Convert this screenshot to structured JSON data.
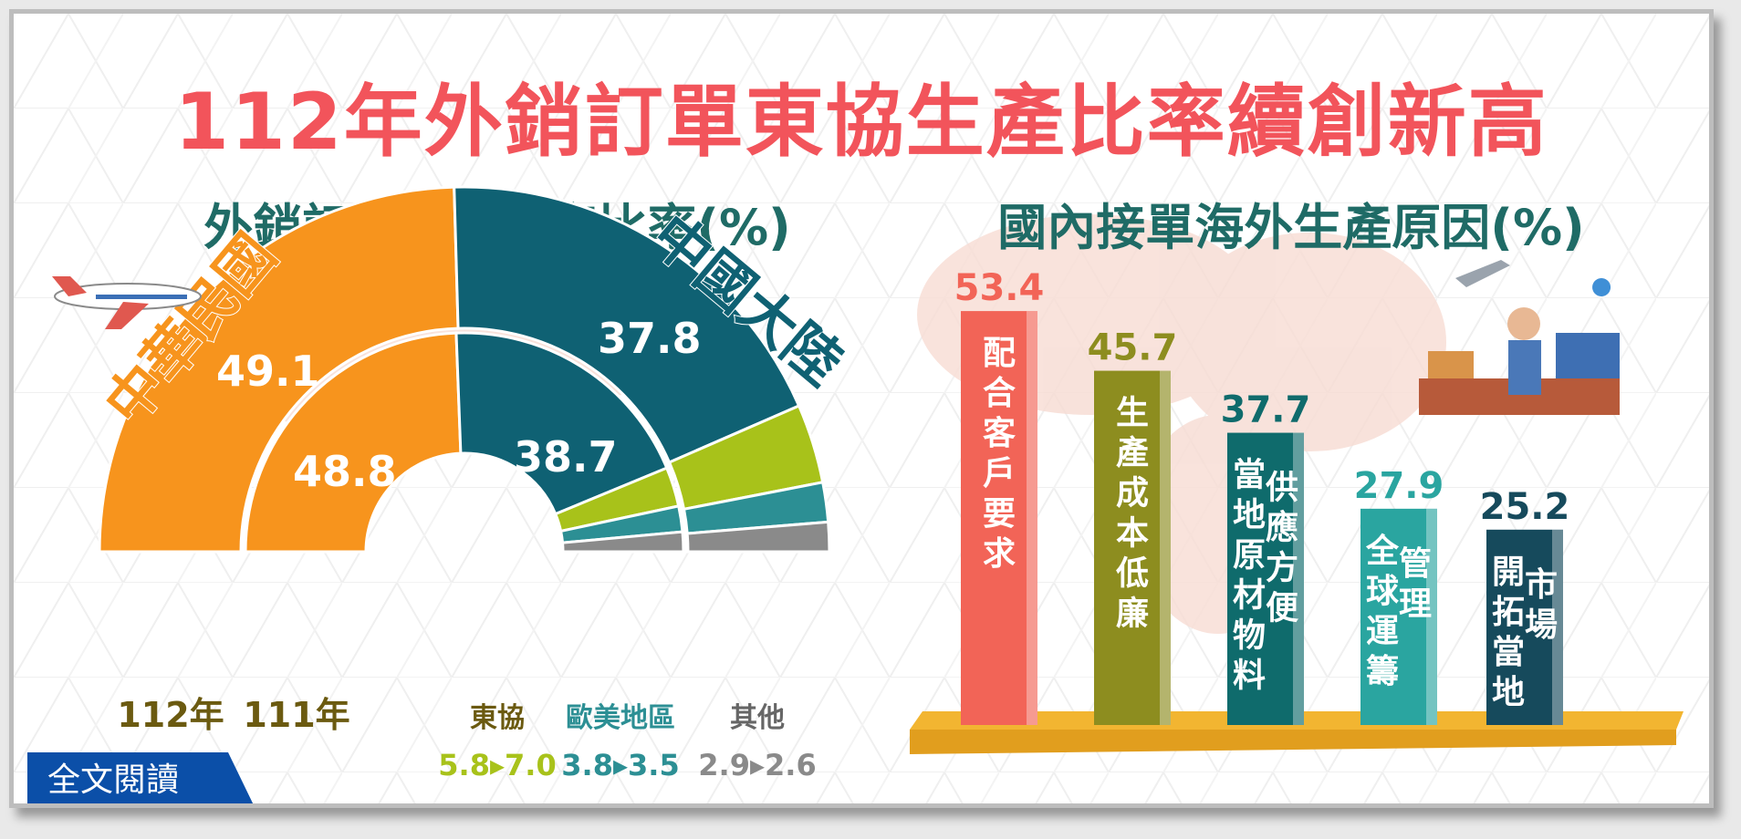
{
  "title": "112年外銷訂單東協生產比率續創新高",
  "left_title": "外銷訂單各地生產比率(%)",
  "right_title": "國內接單海外生產原因(%)",
  "read_button": "全文閱讀",
  "colors": {
    "title_red": "#f2545b",
    "subtitle_teal": "#1f6b66",
    "taiwan_orange": "#f7941d",
    "china_teal": "#0f6173",
    "asean_green": "#a8c21a",
    "euam_teal": "#2c8f94",
    "other_gray": "#8a8a8a",
    "year_brown": "#6b5a10",
    "button_blue": "#0b4fa8"
  },
  "chart_data": [
    {
      "type": "donut",
      "title": "外銷訂單各地生產比率(%)",
      "series": [
        {
          "name": "112年",
          "values": {
            "中華民國": 49.1,
            "中國大陸": 37.8,
            "東協": 7.0,
            "歐美地區": 3.5,
            "其他": 2.6
          }
        },
        {
          "name": "111年",
          "values": {
            "中華民國": 48.8,
            "中國大陸": 38.7,
            "東協": 5.8,
            "歐美地區": 3.8,
            "其他": 2.9
          }
        }
      ],
      "region_labels": {
        "taiwan": "中華民國",
        "china": "中國大陸"
      },
      "value_labels": {
        "taiwan_112": "49.1",
        "taiwan_111": "48.8",
        "china_112": "37.8",
        "china_111": "38.7"
      },
      "year_labels": [
        "112年",
        "111年"
      ],
      "small_regions": [
        {
          "name": "東協",
          "change": "5.8▸7.0"
        },
        {
          "name": "歐美地區",
          "change": "3.8▸3.5"
        },
        {
          "name": "其他",
          "change": "2.9▸2.6"
        }
      ]
    },
    {
      "type": "bar",
      "title": "國內接單海外生產原因(%)",
      "categories": [
        "配合客戶要求",
        "生產成本低廉",
        "供應方便當地原材物料",
        "管理全球運籌",
        "市場開拓當地"
      ],
      "bar_texts": [
        [
          "配合客戶要求"
        ],
        [
          "生產成本低廉"
        ],
        [
          "供應方便",
          "當地原材物料"
        ],
        [
          "管理",
          "全球運籌"
        ],
        [
          "市場",
          "開拓當地"
        ]
      ],
      "values": [
        53.4,
        45.7,
        37.7,
        27.9,
        25.2
      ],
      "value_labels": [
        "53.4",
        "45.7",
        "37.7",
        "27.9",
        "25.2"
      ],
      "colors": [
        "#f26457",
        "#8d8d1f",
        "#0f6b6c",
        "#2aa5a0",
        "#164a5c"
      ]
    }
  ]
}
